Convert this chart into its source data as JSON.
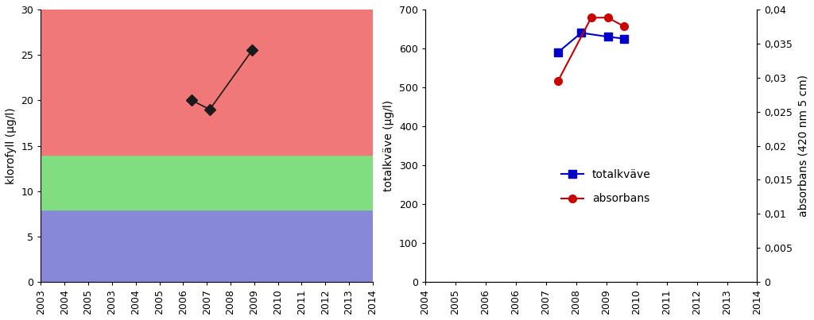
{
  "left": {
    "ylabel": "klorofyll (μg/l)",
    "ylim": [
      0,
      30
    ],
    "xlim": [
      2003,
      2014
    ],
    "xticks": [
      2003,
      2004,
      2005,
      2003,
      2004,
      2005,
      2006,
      2007,
      2008,
      2009,
      2010,
      2011,
      2012,
      2013,
      2014
    ],
    "xtick_positions": [
      2003,
      2003.786,
      2004.571,
      2005.357,
      2006.143,
      2006.929,
      2007.714,
      2008.5,
      2009.286,
      2010.071,
      2010.857,
      2011.643,
      2012.429,
      2013.214,
      2014
    ],
    "yticks": [
      0,
      5,
      10,
      15,
      20,
      25,
      30
    ],
    "band_blue": [
      0,
      8
    ],
    "band_green": [
      8,
      14
    ],
    "band_red": [
      14,
      30
    ],
    "band_blue_color": "#8888d8",
    "band_green_color": "#80dd80",
    "band_red_color": "#f07878",
    "data_x": [
      2008.0,
      2008.6,
      2010.0
    ],
    "data_y": [
      20.0,
      19.0,
      25.5
    ],
    "line_color": "#1a1a1a",
    "marker": "D",
    "markersize": 7
  },
  "right": {
    "ylabel_left": "totalkväve (μg/l)",
    "ylabel_right": "absorbans (420 nm 5 cm)",
    "ylim_left": [
      0,
      700
    ],
    "ylim_right": [
      0,
      0.04
    ],
    "xlim": [
      2004,
      2014
    ],
    "xtick_labels": [
      "2004",
      "2005",
      "2006",
      "2006",
      "2007",
      "2008",
      "2009",
      "2010",
      "2011",
      "2012",
      "2013",
      "2014"
    ],
    "xtick_positions": [
      2004,
      2004.909,
      2005.818,
      2006.727,
      2007.636,
      2008.545,
      2009.455,
      2010.364,
      2011.273,
      2012.182,
      2013.091,
      2014
    ],
    "yticks_left": [
      0,
      100,
      200,
      300,
      400,
      500,
      600,
      700
    ],
    "yticks_right": [
      0,
      0.005,
      0.01,
      0.015,
      0.02,
      0.025,
      0.03,
      0.035,
      0.04
    ],
    "ytick_labels_right": [
      "0",
      "0,005",
      "0,01",
      "0,015",
      "0,02",
      "0,025",
      "0,03",
      "0,035",
      "0,04"
    ],
    "blue_x": [
      2008.0,
      2008.7,
      2009.5,
      2010.0
    ],
    "blue_y": [
      590,
      640,
      630,
      625
    ],
    "red_x": [
      2008.0,
      2009.0,
      2009.5,
      2010.0
    ],
    "red_y": [
      0.0295,
      0.0388,
      0.0388,
      0.0375
    ],
    "blue_color": "#0000cc",
    "red_color": "#cc0000",
    "legend_totalkvaeve": "totalkväve",
    "legend_absorbans": "absorbans"
  },
  "background_color": "#ffffff"
}
